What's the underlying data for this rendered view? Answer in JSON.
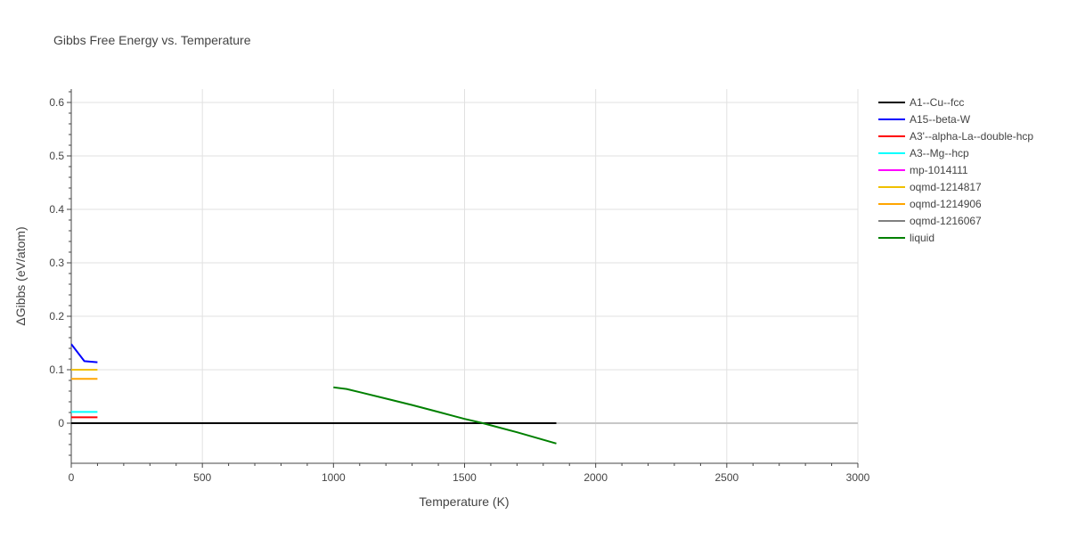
{
  "chart_data": {
    "type": "line",
    "title": "Gibbs Free Energy vs. Temperature",
    "xlabel": "Temperature (K)",
    "ylabel": "ΔGibbs (eV/atom)",
    "xlim": [
      0,
      3000
    ],
    "ylim": [
      -0.075,
      0.625
    ],
    "x_ticks": [
      0,
      500,
      1000,
      1500,
      2000,
      2500,
      3000
    ],
    "x_tick_labels": [
      "0",
      "500",
      "1000",
      "1500",
      "2000",
      "2500",
      "3000"
    ],
    "y_ticks": [
      0,
      0.1,
      0.2,
      0.3,
      0.4,
      0.5,
      0.6
    ],
    "y_tick_labels": [
      "0",
      "0.1",
      "0.2",
      "0.3",
      "0.4",
      "0.5",
      "0.6"
    ],
    "grid": true,
    "legend_position": "right",
    "series": [
      {
        "name": "A1--Cu--fcc",
        "color": "#000000",
        "x": [
          0,
          1850
        ],
        "y": [
          0,
          0
        ]
      },
      {
        "name": "A15--beta-W",
        "color": "#0000ff",
        "x": [
          0,
          50,
          100
        ],
        "y": [
          0.148,
          0.116,
          0.114
        ]
      },
      {
        "name": "A3'--alpha-La--double-hcp",
        "color": "#ff0000",
        "x": [
          0,
          100
        ],
        "y": [
          0.011,
          0.011
        ]
      },
      {
        "name": "A3--Mg--hcp",
        "color": "#00ffff",
        "x": [
          0,
          100
        ],
        "y": [
          0.021,
          0.021
        ]
      },
      {
        "name": "mp-1014111",
        "color": "#ff00ff",
        "x": [],
        "y": []
      },
      {
        "name": "oqmd-1214817",
        "color": "#f0c000",
        "x": [
          0,
          100
        ],
        "y": [
          0.1,
          0.1
        ]
      },
      {
        "name": "oqmd-1214906",
        "color": "#ffa500",
        "x": [
          0,
          100
        ],
        "y": [
          0.083,
          0.083
        ]
      },
      {
        "name": "oqmd-1216067",
        "color": "#808080",
        "x": [],
        "y": []
      },
      {
        "name": "liquid",
        "color": "#008000",
        "x": [
          1000,
          1050,
          1100,
          1200,
          1300,
          1400,
          1500,
          1570,
          1600,
          1700,
          1850
        ],
        "y": [
          0.067,
          0.064,
          0.058,
          0.046,
          0.034,
          0.021,
          0.008,
          0.0,
          -0.004,
          -0.017,
          -0.038
        ]
      }
    ]
  }
}
